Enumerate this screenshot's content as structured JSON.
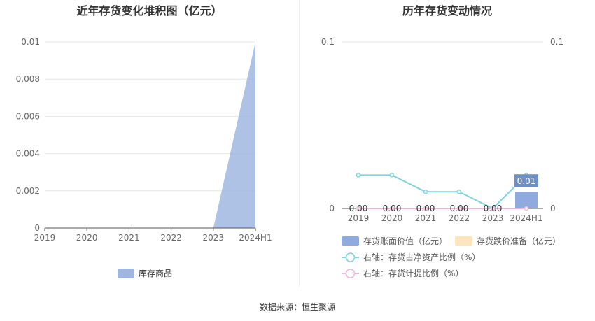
{
  "chart_data": [
    {
      "type": "area",
      "title": "近年存货变化堆积图（亿元）",
      "categories": [
        "2019",
        "2020",
        "2021",
        "2022",
        "2023",
        "2024H1"
      ],
      "series": [
        {
          "name": "库存商品",
          "values": [
            0,
            0,
            0,
            0,
            0,
            0.01
          ],
          "color": "#9fb7e0"
        }
      ],
      "y_ticks": [
        "0",
        "0.002",
        "0.004",
        "0.006",
        "0.008",
        "0.01"
      ],
      "ylim": [
        0,
        0.01
      ],
      "legend_position": "bottom",
      "grid": true
    },
    {
      "type": "bar",
      "title": "历年存货变动情况",
      "categories": [
        "2019",
        "2020",
        "2021",
        "2022",
        "2023",
        "2024H1"
      ],
      "ylim_left": [
        0,
        0.1
      ],
      "ylim_right": [
        0,
        0.1
      ],
      "y_ticks_left": [
        "0",
        "0.1"
      ],
      "y_ticks_right": [
        "0",
        "0.1"
      ],
      "series": [
        {
          "name": "存货账面价值（亿元）",
          "kind": "bar",
          "axis": "left",
          "values": [
            0,
            0,
            0,
            0,
            0,
            0.01
          ],
          "labels": [
            "0.00",
            "0.00",
            "0.00",
            "0.00",
            "0.00",
            "0.01"
          ],
          "color": "#8faadc"
        },
        {
          "name": "存货跌价准备（亿元）",
          "kind": "bar",
          "axis": "left",
          "values": [
            0,
            0,
            0,
            0,
            0,
            0
          ],
          "color": "#fde5c0"
        },
        {
          "name": "右轴：存货占净资产比例（%）",
          "kind": "line",
          "axis": "right",
          "values": [
            0.02,
            0.02,
            0.01,
            0.01,
            0,
            0.02
          ],
          "color": "#7fd3de"
        },
        {
          "name": "右轴：存货计提比例（%）",
          "kind": "line",
          "axis": "right",
          "values": [
            0,
            0,
            0,
            0,
            0,
            0
          ],
          "color": "#f0b8d8"
        }
      ],
      "grid": true
    }
  ],
  "footer": {
    "source": "数据来源：恒生聚源"
  }
}
